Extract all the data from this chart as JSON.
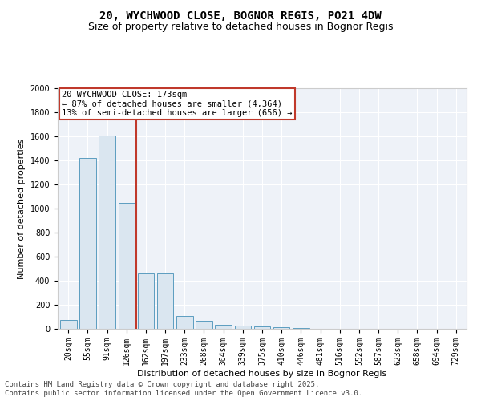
{
  "title": "20, WYCHWOOD CLOSE, BOGNOR REGIS, PO21 4DW",
  "subtitle": "Size of property relative to detached houses in Bognor Regis",
  "xlabel": "Distribution of detached houses by size in Bognor Regis",
  "ylabel": "Number of detached properties",
  "categories": [
    "20sqm",
    "55sqm",
    "91sqm",
    "126sqm",
    "162sqm",
    "197sqm",
    "233sqm",
    "268sqm",
    "304sqm",
    "339sqm",
    "375sqm",
    "410sqm",
    "446sqm",
    "481sqm",
    "516sqm",
    "552sqm",
    "587sqm",
    "623sqm",
    "658sqm",
    "694sqm",
    "729sqm"
  ],
  "values": [
    75,
    1420,
    1610,
    1050,
    460,
    460,
    105,
    65,
    35,
    25,
    18,
    12,
    5,
    3,
    2,
    1,
    0,
    0,
    0,
    0,
    0
  ],
  "bar_color": "#dae6f0",
  "bar_edgecolor": "#5b9dc0",
  "vline_position": 3.5,
  "vline_color": "#c0392b",
  "annotation_text": "20 WYCHWOOD CLOSE: 173sqm\n← 87% of detached houses are smaller (4,364)\n13% of semi-detached houses are larger (656) →",
  "annotation_box_edgecolor": "#c0392b",
  "annotation_box_facecolor": "#ffffff",
  "ylim": [
    0,
    2000
  ],
  "yticks": [
    0,
    200,
    400,
    600,
    800,
    1000,
    1200,
    1400,
    1600,
    1800,
    2000
  ],
  "footer_line1": "Contains HM Land Registry data © Crown copyright and database right 2025.",
  "footer_line2": "Contains public sector information licensed under the Open Government Licence v3.0.",
  "bg_color": "#ffffff",
  "plot_bg_color": "#eef2f8",
  "title_fontsize": 10,
  "subtitle_fontsize": 9,
  "axis_label_fontsize": 8,
  "tick_fontsize": 7,
  "annotation_fontsize": 7.5,
  "footer_fontsize": 6.5
}
